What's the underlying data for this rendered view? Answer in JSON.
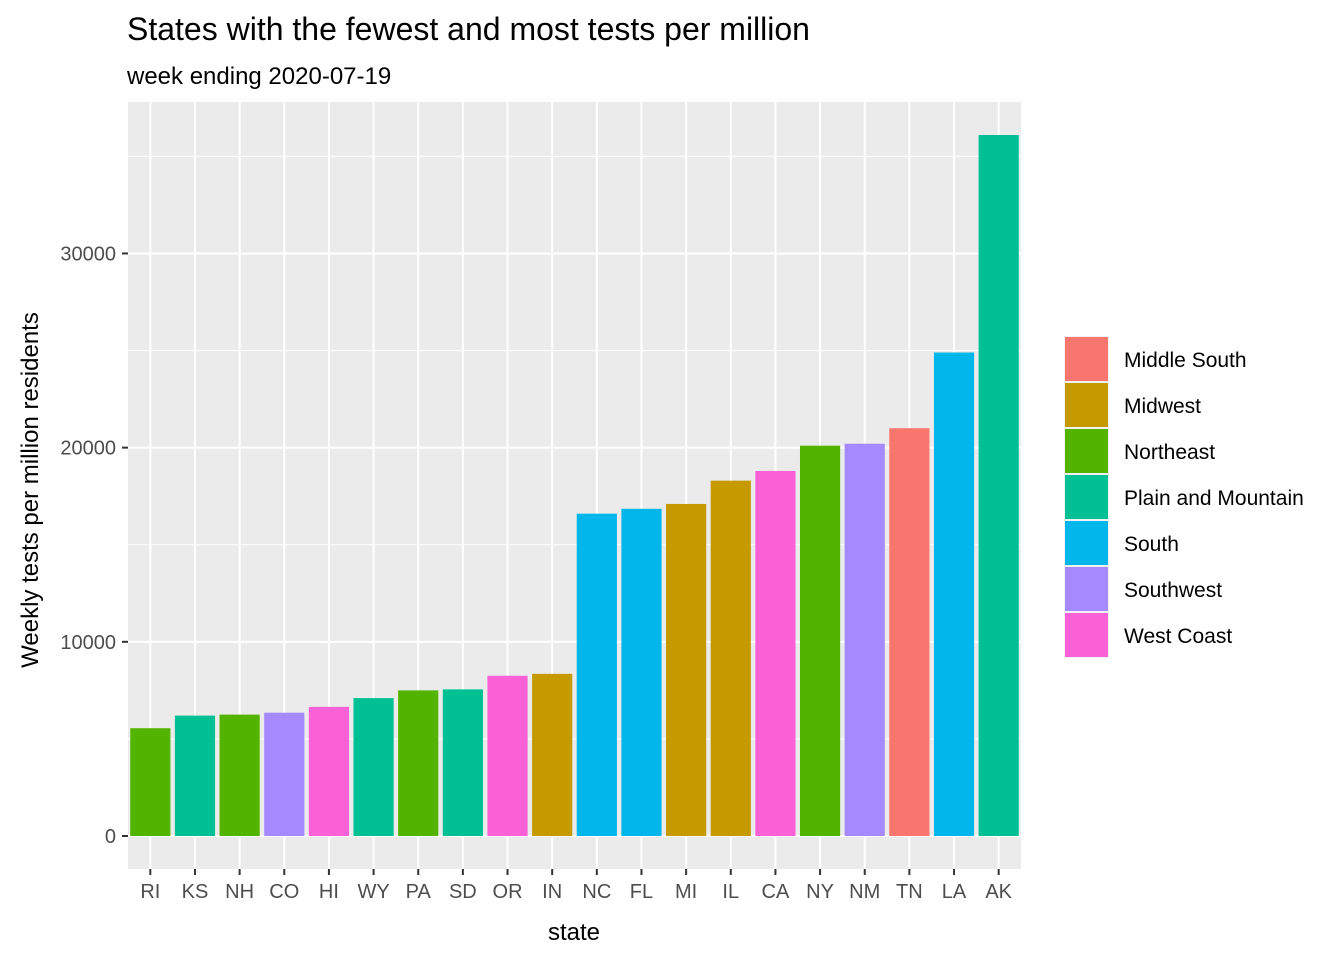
{
  "chart_data": {
    "type": "bar",
    "title": "States with the fewest and most tests per million",
    "subtitle": "week ending 2020-07-19",
    "xlabel": "state",
    "ylabel": "Weekly tests per million residents",
    "ylim": [
      -1700,
      37800
    ],
    "y_ticks": [
      0,
      10000,
      20000,
      30000
    ],
    "y_tick_labels": [
      "0",
      "10000",
      "20000",
      "30000"
    ],
    "grid": true,
    "legend_position": "right",
    "legend": [
      {
        "name": "Middle South",
        "color": "#F8766D"
      },
      {
        "name": "Midwest",
        "color": "#C49A00"
      },
      {
        "name": "Northeast",
        "color": "#53B400"
      },
      {
        "name": "Plain and Mountain",
        "color": "#00C094"
      },
      {
        "name": "South",
        "color": "#00B6EB"
      },
      {
        "name": "Southwest",
        "color": "#A58AFF"
      },
      {
        "name": "West Coast",
        "color": "#FB61D7"
      }
    ],
    "categories": [
      "RI",
      "KS",
      "NH",
      "CO",
      "HI",
      "WY",
      "PA",
      "SD",
      "OR",
      "IN",
      "NC",
      "FL",
      "MI",
      "IL",
      "CA",
      "NY",
      "NM",
      "TN",
      "LA",
      "AK"
    ],
    "values": [
      5550,
      6200,
      6250,
      6350,
      6650,
      7100,
      7500,
      7550,
      8250,
      8350,
      16600,
      16850,
      17100,
      18300,
      18800,
      20100,
      20200,
      21000,
      24900,
      36100
    ],
    "regions": [
      "Northeast",
      "Plain and Mountain",
      "Northeast",
      "Southwest",
      "West Coast",
      "Plain and Mountain",
      "Northeast",
      "Plain and Mountain",
      "West Coast",
      "Midwest",
      "South",
      "South",
      "Midwest",
      "Midwest",
      "West Coast",
      "Northeast",
      "Southwest",
      "Middle South",
      "South",
      "Plain and Mountain"
    ]
  }
}
